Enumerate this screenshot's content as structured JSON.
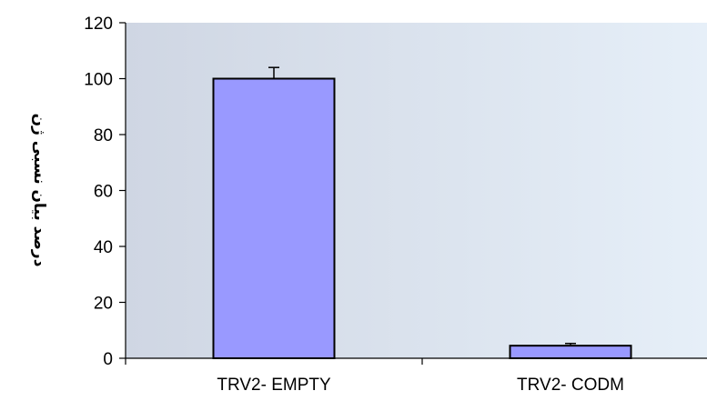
{
  "chart_data": {
    "type": "bar",
    "title": "",
    "xlabel": "",
    "ylabel": "درصد بیان نسبی ژن",
    "categories": [
      "TRV2- EMPTY",
      "TRV2- CODM"
    ],
    "values": [
      100,
      4.5
    ],
    "error_bars": [
      4,
      0.8
    ],
    "ylim": [
      0,
      120
    ],
    "yticks": [
      "0",
      "20",
      "40",
      "60",
      "80",
      "100",
      "120"
    ],
    "grid": false,
    "legend": "none",
    "colors": {
      "bar_fill": "#9999ff",
      "bar_stroke": "#000000",
      "plot_bg_left": "#cfd6e3",
      "plot_bg_right": "#e6eff8"
    }
  }
}
